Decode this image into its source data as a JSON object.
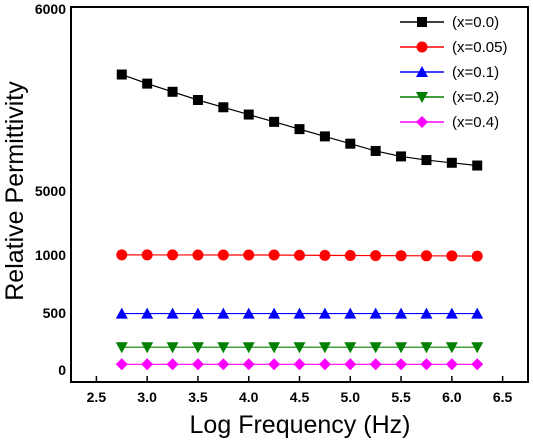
{
  "chart_data": {
    "type": "line",
    "xlabel": "Log Frequency (Hz)",
    "ylabel": "Relative Permittivity",
    "xlim": [
      2.25,
      6.75
    ],
    "x_ticks": [
      "2.5",
      "3.0",
      "3.5",
      "4.0",
      "4.5",
      "5.0",
      "5.5",
      "6.0",
      "6.5"
    ],
    "x_tick_values": [
      2.5,
      3.0,
      3.5,
      4.0,
      4.5,
      5.0,
      5.5,
      6.0,
      6.5
    ],
    "y_scale": "broken",
    "y_tick_values": [
      0,
      500,
      1000,
      5000,
      6000
    ],
    "y_ticks": [
      "0",
      "500",
      "1000",
      "5000",
      "6000"
    ],
    "legend_position": "top-right",
    "x": [
      2.75,
      3.0,
      3.25,
      3.5,
      3.75,
      4.0,
      4.25,
      4.5,
      4.75,
      5.0,
      5.25,
      5.5,
      5.75,
      6.0,
      6.25
    ],
    "series": [
      {
        "name": "(x=0.0)",
        "color": "#000000",
        "marker": "square",
        "values": [
          5640,
          5590,
          5545,
          5500,
          5460,
          5420,
          5380,
          5340,
          5300,
          5260,
          5220,
          5190,
          5170,
          5155,
          5140
        ]
      },
      {
        "name": "(x=0.05)",
        "color": "#ff0000",
        "marker": "circle",
        "values": [
          1010,
          1005,
          1005,
          1003,
          1002,
          1000,
          1000,
          998,
          997,
          996,
          995,
          994,
          993,
          992,
          990
        ]
      },
      {
        "name": "(x=0.1)",
        "color": "#0000ff",
        "marker": "triangle-up",
        "values": [
          495,
          495,
          495,
          495,
          495,
          495,
          495,
          495,
          495,
          495,
          495,
          495,
          495,
          495,
          495
        ]
      },
      {
        "name": "(x=0.2)",
        "color": "#008000",
        "marker": "triangle-down",
        "values": [
          200,
          200,
          200,
          200,
          200,
          200,
          200,
          200,
          200,
          200,
          200,
          200,
          200,
          200,
          200
        ]
      },
      {
        "name": "(x=0.4)",
        "color": "#ff00ff",
        "marker": "diamond",
        "values": [
          50,
          50,
          50,
          50,
          50,
          50,
          50,
          50,
          50,
          50,
          50,
          50,
          50,
          50,
          50
        ]
      }
    ]
  }
}
